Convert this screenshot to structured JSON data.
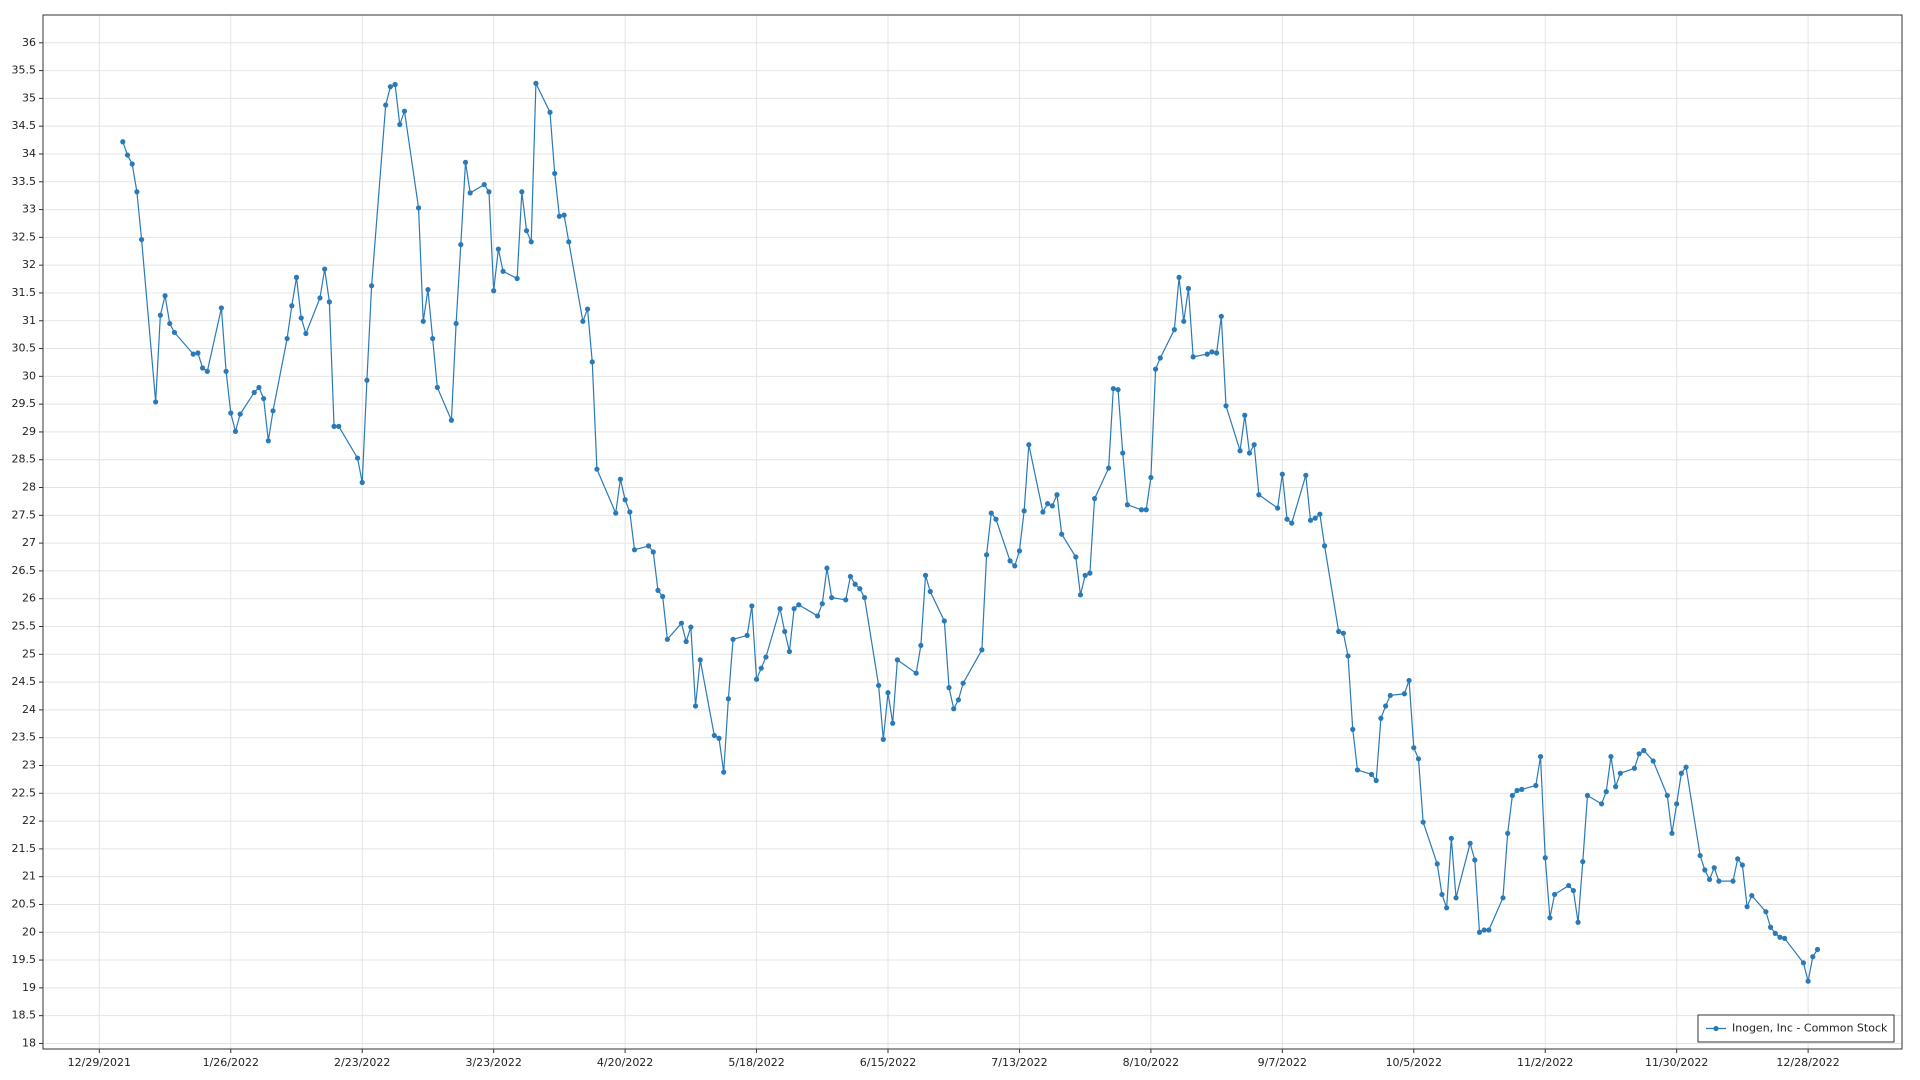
{
  "chart_data": {
    "type": "line",
    "x": [
      "1/3/2022",
      "1/4/2022",
      "1/5/2022",
      "1/6/2022",
      "1/7/2022",
      "1/10/2022",
      "1/11/2022",
      "1/12/2022",
      "1/13/2022",
      "1/14/2022",
      "1/18/2022",
      "1/19/2022",
      "1/20/2022",
      "1/21/2022",
      "1/24/2022",
      "1/25/2022",
      "1/26/2022",
      "1/27/2022",
      "1/28/2022",
      "1/31/2022",
      "2/1/2022",
      "2/2/2022",
      "2/3/2022",
      "2/4/2022",
      "2/7/2022",
      "2/8/2022",
      "2/9/2022",
      "2/10/2022",
      "2/11/2022",
      "2/14/2022",
      "2/15/2022",
      "2/16/2022",
      "2/17/2022",
      "2/18/2022",
      "2/22/2022",
      "2/23/2022",
      "2/24/2022",
      "2/25/2022",
      "2/28/2022",
      "3/1/2022",
      "3/2/2022",
      "3/3/2022",
      "3/4/2022",
      "3/7/2022",
      "3/8/2022",
      "3/9/2022",
      "3/10/2022",
      "3/11/2022",
      "3/14/2022",
      "3/15/2022",
      "3/16/2022",
      "3/17/2022",
      "3/18/2022",
      "3/21/2022",
      "3/22/2022",
      "3/23/2022",
      "3/24/2022",
      "3/25/2022",
      "3/28/2022",
      "3/29/2022",
      "3/30/2022",
      "3/31/2022",
      "4/1/2022",
      "4/4/2022",
      "4/5/2022",
      "4/6/2022",
      "4/7/2022",
      "4/8/2022",
      "4/11/2022",
      "4/12/2022",
      "4/13/2022",
      "4/14/2022",
      "4/18/2022",
      "4/19/2022",
      "4/20/2022",
      "4/21/2022",
      "4/22/2022",
      "4/25/2022",
      "4/26/2022",
      "4/27/2022",
      "4/28/2022",
      "4/29/2022",
      "5/2/2022",
      "5/3/2022",
      "5/4/2022",
      "5/5/2022",
      "5/6/2022",
      "5/9/2022",
      "5/10/2022",
      "5/11/2022",
      "5/12/2022",
      "5/13/2022",
      "5/16/2022",
      "5/17/2022",
      "5/18/2022",
      "5/19/2022",
      "5/20/2022",
      "5/23/2022",
      "5/24/2022",
      "5/25/2022",
      "5/26/2022",
      "5/27/2022",
      "5/31/2022",
      "6/1/2022",
      "6/2/2022",
      "6/3/2022",
      "6/6/2022",
      "6/7/2022",
      "6/8/2022",
      "6/9/2022",
      "6/10/2022",
      "6/13/2022",
      "6/14/2022",
      "6/15/2022",
      "6/16/2022",
      "6/17/2022",
      "6/21/2022",
      "6/22/2022",
      "6/23/2022",
      "6/24/2022",
      "6/27/2022",
      "6/28/2022",
      "6/29/2022",
      "6/30/2022",
      "7/1/2022",
      "7/5/2022",
      "7/6/2022",
      "7/7/2022",
      "7/8/2022",
      "7/11/2022",
      "7/12/2022",
      "7/13/2022",
      "7/14/2022",
      "7/15/2022",
      "7/18/2022",
      "7/19/2022",
      "7/20/2022",
      "7/21/2022",
      "7/22/2022",
      "7/25/2022",
      "7/26/2022",
      "7/27/2022",
      "7/28/2022",
      "7/29/2022",
      "8/1/2022",
      "8/2/2022",
      "8/3/2022",
      "8/4/2022",
      "8/5/2022",
      "8/8/2022",
      "8/9/2022",
      "8/10/2022",
      "8/11/2022",
      "8/12/2022",
      "8/15/2022",
      "8/16/2022",
      "8/17/2022",
      "8/18/2022",
      "8/19/2022",
      "8/22/2022",
      "8/23/2022",
      "8/24/2022",
      "8/25/2022",
      "8/26/2022",
      "8/29/2022",
      "8/30/2022",
      "8/31/2022",
      "9/1/2022",
      "9/2/2022",
      "9/6/2022",
      "9/7/2022",
      "9/8/2022",
      "9/9/2022",
      "9/12/2022",
      "9/13/2022",
      "9/14/2022",
      "9/15/2022",
      "9/16/2022",
      "9/19/2022",
      "9/20/2022",
      "9/21/2022",
      "9/22/2022",
      "9/23/2022",
      "9/26/2022",
      "9/27/2022",
      "9/28/2022",
      "9/29/2022",
      "9/30/2022",
      "10/3/2022",
      "10/4/2022",
      "10/5/2022",
      "10/6/2022",
      "10/7/2022",
      "10/10/2022",
      "10/11/2022",
      "10/12/2022",
      "10/13/2022",
      "10/14/2022",
      "10/17/2022",
      "10/18/2022",
      "10/19/2022",
      "10/20/2022",
      "10/21/2022",
      "10/24/2022",
      "10/25/2022",
      "10/26/2022",
      "10/27/2022",
      "10/28/2022",
      "10/31/2022",
      "11/1/2022",
      "11/2/2022",
      "11/3/2022",
      "11/4/2022",
      "11/7/2022",
      "11/8/2022",
      "11/9/2022",
      "11/10/2022",
      "11/11/2022",
      "11/14/2022",
      "11/15/2022",
      "11/16/2022",
      "11/17/2022",
      "11/18/2022",
      "11/21/2022",
      "11/22/2022",
      "11/23/2022",
      "11/25/2022",
      "11/28/2022",
      "11/29/2022",
      "11/30/2022",
      "12/1/2022",
      "12/2/2022",
      "12/5/2022",
      "12/6/2022",
      "12/7/2022",
      "12/8/2022",
      "12/9/2022",
      "12/12/2022",
      "12/13/2022",
      "12/14/2022",
      "12/15/2022",
      "12/16/2022",
      "12/19/2022",
      "12/20/2022",
      "12/21/2022",
      "12/22/2022",
      "12/23/2022",
      "12/27/2022",
      "12/28/2022",
      "12/29/2022",
      "12/30/2022"
    ],
    "series": [
      {
        "name": "Inogen, Inc - Common Stock",
        "color": "#2a7ab8",
        "values": [
          34.22,
          33.98,
          33.82,
          33.32,
          32.46,
          29.54,
          31.1,
          31.45,
          30.95,
          30.79,
          30.4,
          30.42,
          30.15,
          30.09,
          31.23,
          30.09,
          29.34,
          29.01,
          29.32,
          29.71,
          29.8,
          29.6,
          28.84,
          29.38,
          30.68,
          31.27,
          31.78,
          31.05,
          30.77,
          31.41,
          31.93,
          31.34,
          29.1,
          29.1,
          28.53,
          28.09,
          29.93,
          31.63,
          34.88,
          35.21,
          35.25,
          34.53,
          34.77,
          33.03,
          30.99,
          31.56,
          30.68,
          29.8,
          29.21,
          30.95,
          32.37,
          33.85,
          33.3,
          33.45,
          33.32,
          31.54,
          32.29,
          31.89,
          31.76,
          33.32,
          32.62,
          32.42,
          35.27,
          34.75,
          33.65,
          32.88,
          32.9,
          32.42,
          30.99,
          31.21,
          30.26,
          28.33,
          27.54,
          28.15,
          27.78,
          27.56,
          26.88,
          26.95,
          26.84,
          26.15,
          26.04,
          25.27,
          25.56,
          25.23,
          25.49,
          24.07,
          24.9,
          23.54,
          23.49,
          22.88,
          24.2,
          25.27,
          25.34,
          25.87,
          24.55,
          24.75,
          24.95,
          25.82,
          25.41,
          25.05,
          25.82,
          25.89,
          25.69,
          25.91,
          26.55,
          26.02,
          25.98,
          26.4,
          26.26,
          26.18,
          26.02,
          24.44,
          23.47,
          24.31,
          23.76,
          24.9,
          24.66,
          25.16,
          26.42,
          26.13,
          25.6,
          24.4,
          24.02,
          24.18,
          24.48,
          25.08,
          26.79,
          27.54,
          27.43,
          26.68,
          26.59,
          26.86,
          27.58,
          28.77,
          27.56,
          27.71,
          27.67,
          27.87,
          27.16,
          26.75,
          26.07,
          26.42,
          26.46,
          27.8,
          28.35,
          29.78,
          29.76,
          28.62,
          27.69,
          27.6,
          27.6,
          28.18,
          30.13,
          30.33,
          30.84,
          31.78,
          30.99,
          31.58,
          30.35,
          30.4,
          30.44,
          30.42,
          31.08,
          29.47,
          28.66,
          29.3,
          28.62,
          28.77,
          27.87,
          27.63,
          28.24,
          27.43,
          27.36,
          28.22,
          27.41,
          27.45,
          27.52,
          26.95,
          25.41,
          25.38,
          24.97,
          23.65,
          22.92,
          22.84,
          22.73,
          23.85,
          24.07,
          24.26,
          24.29,
          24.53,
          23.32,
          23.12,
          21.98,
          21.23,
          20.68,
          20.44,
          21.69,
          20.62,
          21.6,
          21.3,
          20,
          20.04,
          20.04,
          20.62,
          21.78,
          22.46,
          22.55,
          22.57,
          22.64,
          23.16,
          21.34,
          20.26,
          20.68,
          20.84,
          20.75,
          20.18,
          21.27,
          22.46,
          22.31,
          22.53,
          23.16,
          22.62,
          22.86,
          22.95,
          23.21,
          23.27,
          23.08,
          22.46,
          21.78,
          22.31,
          22.86,
          22.97,
          21.38,
          21.12,
          20.95,
          21.16,
          20.92,
          20.92,
          21.32,
          21.21,
          20.46,
          20.66,
          20.37,
          20.09,
          19.98,
          19.91,
          19.89,
          19.45,
          19.12,
          19.56,
          19.69
        ]
      }
    ],
    "xlim": [
      "12/17/2021",
      "1/17/2023"
    ],
    "xticks": [
      "12/29/2021",
      "1/26/2022",
      "2/23/2022",
      "3/23/2022",
      "4/20/2022",
      "5/18/2022",
      "6/15/2022",
      "7/13/2022",
      "8/10/2022",
      "9/7/2022",
      "10/5/2022",
      "11/2/2022",
      "11/30/2022",
      "12/28/2022"
    ],
    "ylim": [
      17.9,
      36.5
    ],
    "yticks": [
      18,
      18.5,
      19,
      19.5,
      20,
      20.5,
      21,
      21.5,
      22,
      22.5,
      23,
      23.5,
      24,
      24.5,
      25,
      25.5,
      26,
      26.5,
      27,
      27.5,
      28,
      28.5,
      29,
      29.5,
      30,
      30.5,
      31,
      31.5,
      32,
      32.5,
      33,
      33.5,
      34,
      34.5,
      35,
      35.5,
      36
    ],
    "grid": true,
    "legend": "lower right"
  }
}
